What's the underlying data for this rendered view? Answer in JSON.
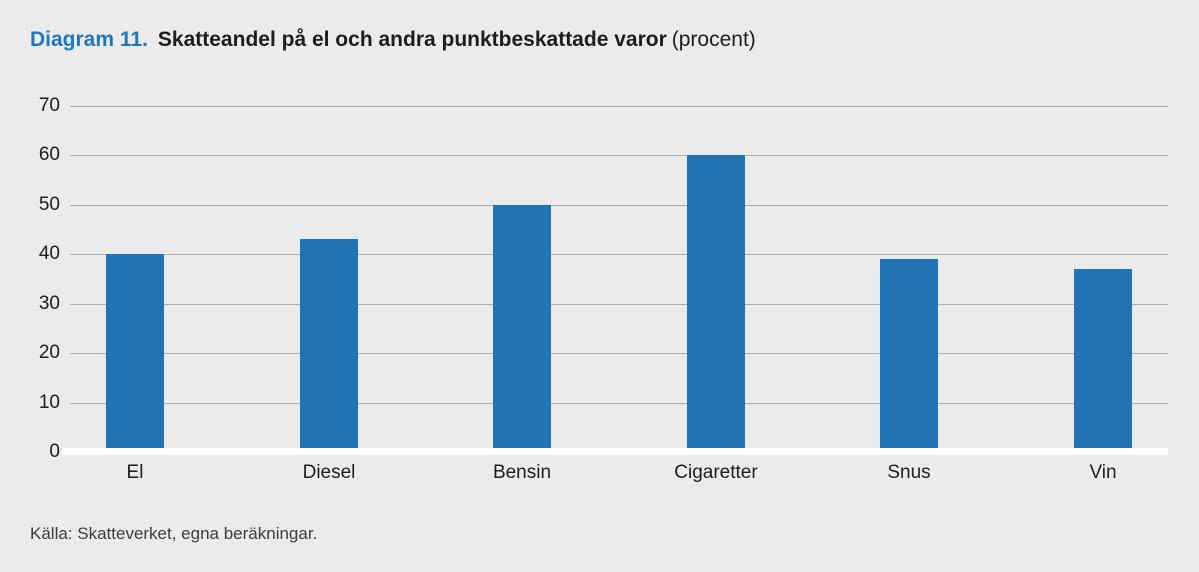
{
  "header": {
    "diagram_label": "Diagram 11.",
    "title": "Skatteandel på el och andra punktbeskattade varor",
    "title_suffix": "(procent)"
  },
  "chart_data": {
    "type": "bar",
    "title": "Skatteandel på el och andra punktbeskattade varor (procent)",
    "categories": [
      "El",
      "Diesel",
      "Bensin",
      "Cigaretter",
      "Snus",
      "Vin"
    ],
    "values": [
      40,
      43,
      50,
      60,
      39,
      37
    ],
    "xlabel": "",
    "ylabel": "",
    "ylim": [
      0,
      70
    ],
    "yticks": [
      0,
      10,
      20,
      30,
      40,
      50,
      60,
      70
    ],
    "grid": true,
    "legend": "none",
    "bar_color": "#2274b5",
    "background_color": "#ebebeb",
    "gridline_color": "#b0b0b0",
    "baseline_color": "#fdfdfd",
    "accent_color": "#1f78bf"
  },
  "footer": {
    "source": "Källa: Skatteverket, egna beräkningar."
  }
}
